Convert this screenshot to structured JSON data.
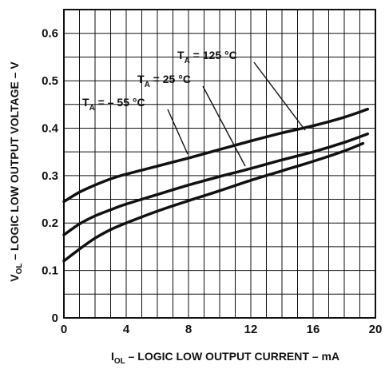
{
  "chart_data": {
    "type": "line",
    "title": "",
    "xlabel": {
      "main": "I",
      "sub": "OL",
      "rest": " – LOGIC LOW OUTPUT CURRENT – mA"
    },
    "ylabel": {
      "main": "V",
      "sub": "OL",
      "rest": " – LOGIC LOW OUTPUT VOLTAGE – V"
    },
    "xlim": [
      0,
      20
    ],
    "ylim": [
      0,
      0.65
    ],
    "xticks": [
      0,
      4,
      8,
      12,
      16,
      20
    ],
    "xtick_labels": [
      "0",
      "4",
      "8",
      "12",
      "16",
      "20"
    ],
    "yticks": [
      0,
      0.1,
      0.2,
      0.3,
      0.4,
      0.5,
      0.6
    ],
    "ytick_labels": [
      "0",
      "0.1",
      "0.2",
      "0.3",
      "0.4",
      "0.5",
      "0.6"
    ],
    "grid": true,
    "line_color": "#111111",
    "series": [
      {
        "annotation": {
          "prefix": "T",
          "sub": "A",
          "rest": " = 125 °C"
        },
        "x": [
          0,
          1,
          2,
          3,
          4,
          6,
          8,
          10,
          12,
          14,
          16,
          18,
          19.5
        ],
        "y": [
          0.245,
          0.265,
          0.28,
          0.293,
          0.303,
          0.32,
          0.337,
          0.355,
          0.373,
          0.39,
          0.405,
          0.423,
          0.44
        ]
      },
      {
        "annotation": {
          "prefix": "T",
          "sub": "A",
          "rest": " = 25 °C"
        },
        "x": [
          0,
          1,
          2,
          3,
          4,
          6,
          8,
          10,
          12,
          14,
          16,
          18,
          19.5
        ],
        "y": [
          0.175,
          0.198,
          0.215,
          0.228,
          0.24,
          0.26,
          0.28,
          0.298,
          0.315,
          0.333,
          0.35,
          0.37,
          0.388
        ]
      },
      {
        "annotation": {
          "prefix": "T",
          "sub": "A",
          "rest": " = – 55 °C"
        },
        "x": [
          0,
          1,
          2,
          3,
          4,
          6,
          8,
          10,
          12,
          14,
          16,
          18,
          19.2
        ],
        "y": [
          0.12,
          0.145,
          0.168,
          0.186,
          0.2,
          0.225,
          0.247,
          0.268,
          0.29,
          0.31,
          0.33,
          0.352,
          0.368
        ]
      }
    ]
  }
}
